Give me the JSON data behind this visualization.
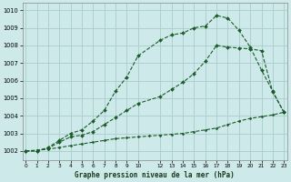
{
  "bg_color": "#cee9ea",
  "grid_color": "#aacccc",
  "line_color": "#1a5c28",
  "title": "Graphe pression niveau de la mer (hPa)",
  "ylabel_vals": [
    1002,
    1003,
    1004,
    1005,
    1006,
    1007,
    1008,
    1009,
    1010
  ],
  "xlim": [
    -0.3,
    23.3
  ],
  "ylim": [
    1001.5,
    1010.4
  ],
  "xticks": [
    0,
    1,
    2,
    3,
    4,
    5,
    6,
    7,
    8,
    9,
    10,
    12,
    13,
    14,
    15,
    16,
    17,
    18,
    19,
    20,
    21,
    22,
    23
  ],
  "xtick_labels": [
    "0",
    "1",
    "2",
    "3",
    "4",
    "5",
    "6",
    "7",
    "8",
    "9",
    "10",
    "12",
    "13",
    "14",
    "15",
    "16",
    "17",
    "18",
    "19",
    "20",
    "21",
    "22",
    "23"
  ],
  "line1_x": [
    0,
    1,
    2,
    3,
    4,
    5,
    6,
    7,
    8,
    9,
    10,
    12,
    13,
    14,
    15,
    16,
    17,
    18,
    19,
    20,
    21,
    22,
    23
  ],
  "line1_y": [
    1002.0,
    1002.0,
    1002.2,
    1002.6,
    1003.0,
    1003.2,
    1003.7,
    1004.3,
    1005.4,
    1006.2,
    1007.4,
    1008.3,
    1008.6,
    1008.7,
    1009.0,
    1009.1,
    1009.7,
    1009.55,
    1008.85,
    1007.9,
    1006.6,
    1005.4,
    1004.2
  ],
  "line2_x": [
    0,
    1,
    2,
    3,
    4,
    5,
    6,
    7,
    8,
    9,
    10,
    12,
    13,
    14,
    15,
    16,
    17,
    18,
    19,
    20,
    21,
    22,
    23
  ],
  "line2_y": [
    1002.0,
    1002.0,
    1002.15,
    1002.5,
    1002.8,
    1002.9,
    1003.1,
    1003.5,
    1003.9,
    1004.3,
    1004.7,
    1005.1,
    1005.5,
    1005.9,
    1006.4,
    1007.1,
    1008.0,
    1007.9,
    1007.85,
    1007.8,
    1007.7,
    1005.35,
    1004.2
  ],
  "line3_x": [
    0,
    1,
    2,
    3,
    4,
    5,
    6,
    7,
    8,
    9,
    10,
    11,
    12,
    13,
    14,
    15,
    16,
    17,
    18,
    19,
    20,
    21,
    22,
    23
  ],
  "line3_y": [
    1002.0,
    1002.05,
    1002.1,
    1002.2,
    1002.3,
    1002.4,
    1002.5,
    1002.6,
    1002.7,
    1002.75,
    1002.8,
    1002.85,
    1002.9,
    1002.95,
    1003.0,
    1003.1,
    1003.2,
    1003.3,
    1003.5,
    1003.7,
    1003.85,
    1003.95,
    1004.05,
    1004.2
  ]
}
